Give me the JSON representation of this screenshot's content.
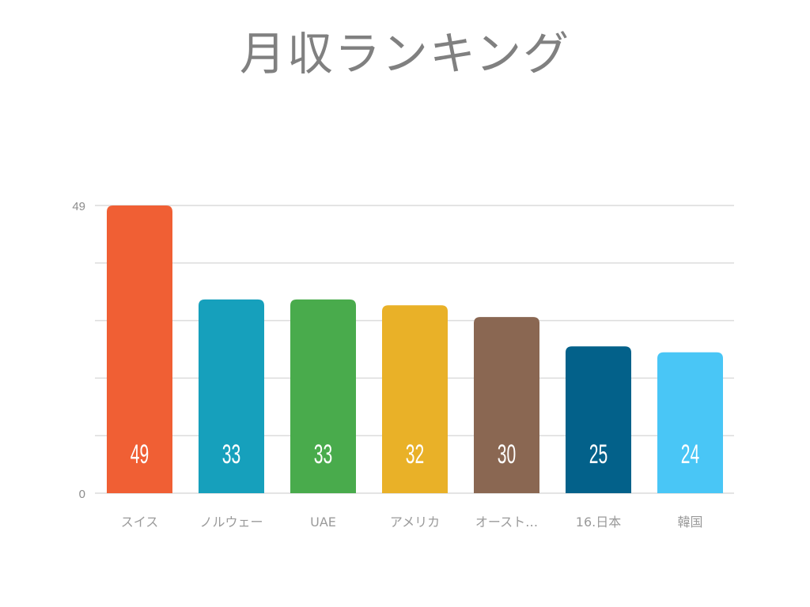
{
  "chart_data": {
    "type": "bar",
    "title": "月収ランキング",
    "categories": [
      "スイス",
      "ノルウェー",
      "UAE",
      "アメリカ",
      "オースト…",
      "16.日本",
      "韓国"
    ],
    "values": [
      49,
      33,
      33,
      32,
      30,
      25,
      24
    ],
    "colors": [
      "#f05f34",
      "#16a0bc",
      "#49ab4c",
      "#e9b128",
      "#8a6752",
      "#03618a",
      "#49c6f6"
    ],
    "ylim": [
      0,
      49
    ],
    "yticks": [
      {
        "value": 0,
        "label": "0"
      },
      {
        "value": 49,
        "label": "49"
      }
    ],
    "gridlines": 5,
    "grid": true,
    "xlabel": "",
    "ylabel": "",
    "data_labels": true
  }
}
